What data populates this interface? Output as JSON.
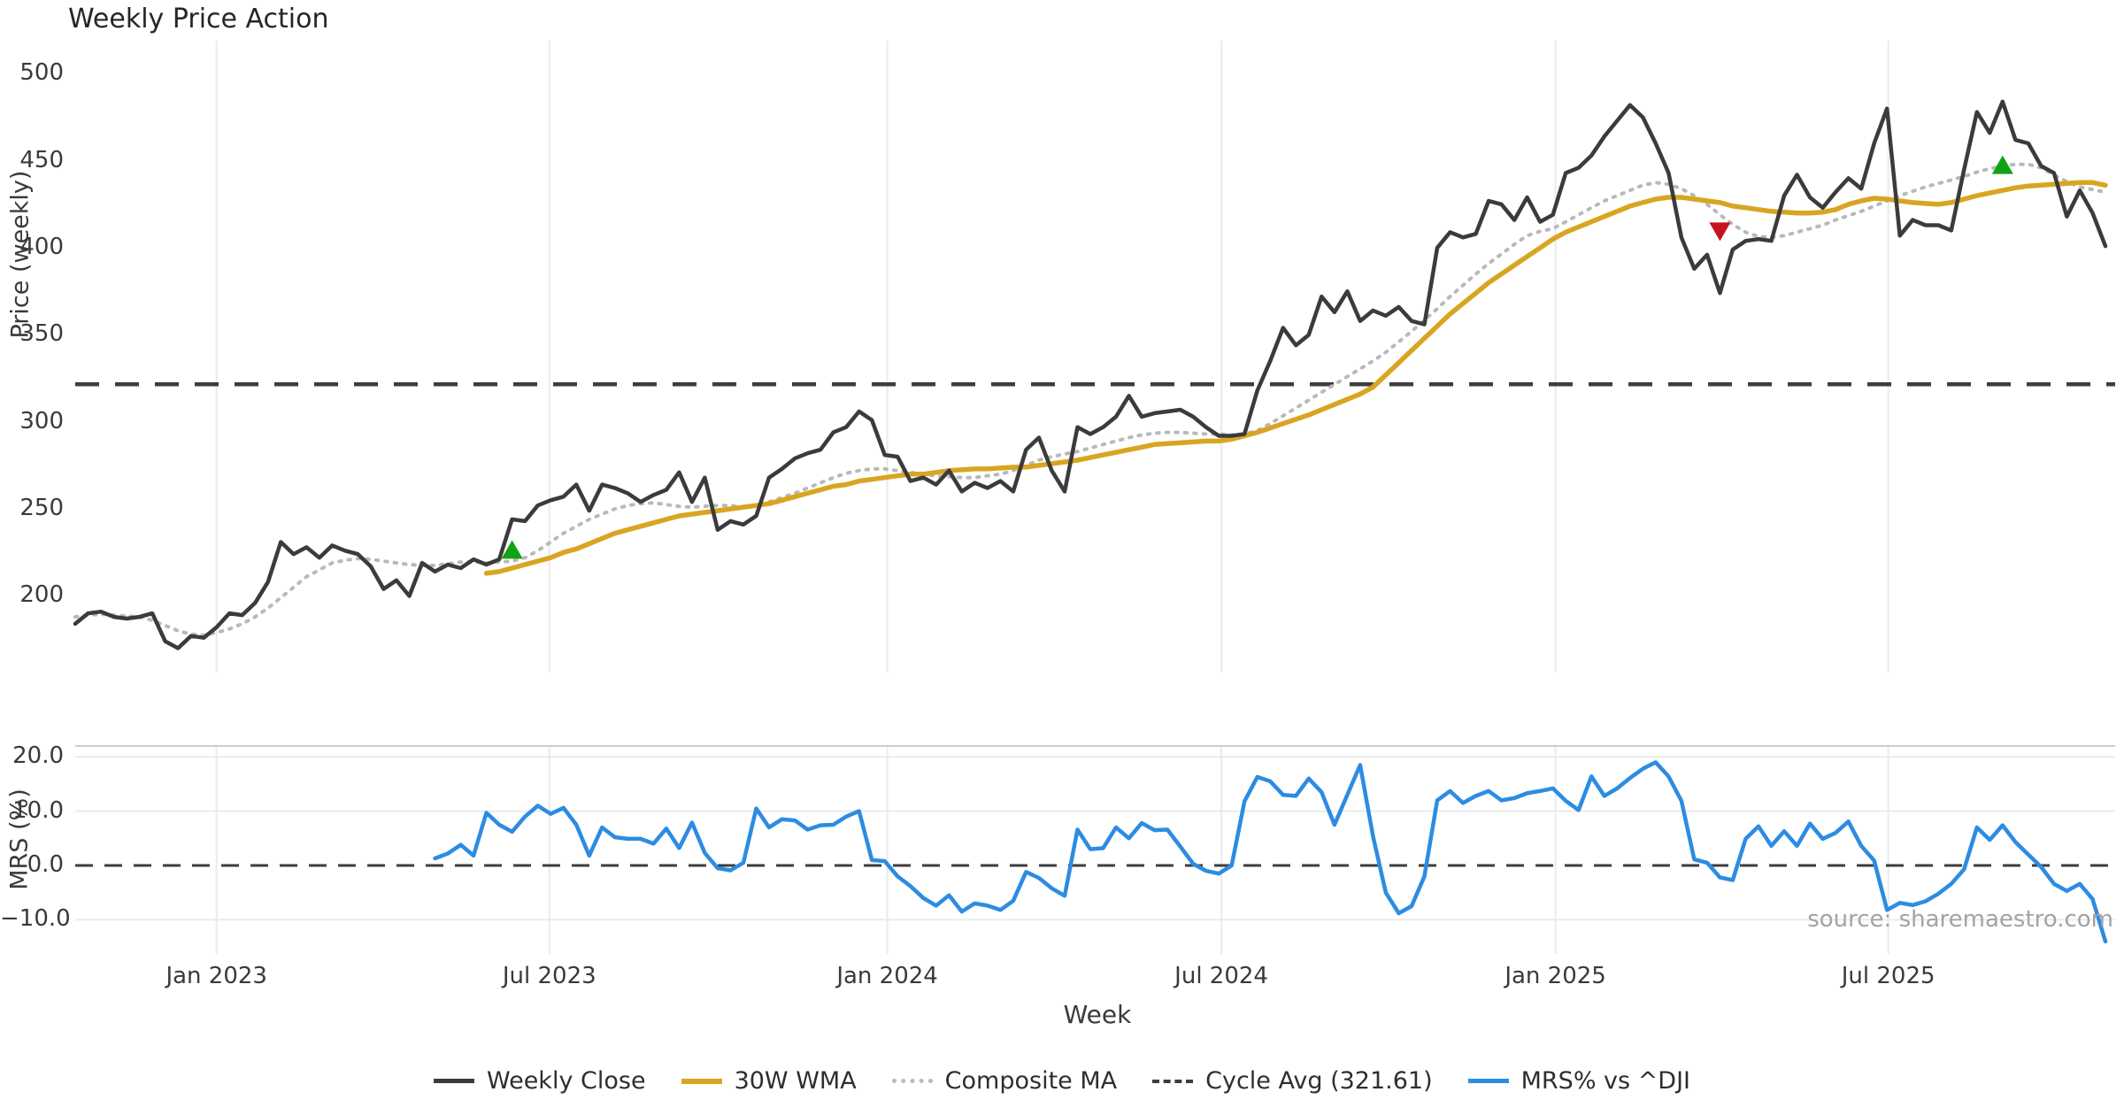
{
  "title": "Weekly Price Action",
  "xlabel": "Week",
  "source": "source: sharemaestro.com",
  "price_panel": {
    "ylabel": "Price (weekly)",
    "tick_values": [
      500,
      450,
      400,
      350,
      300,
      250,
      200
    ],
    "axis_min": 156,
    "axis_max": 519
  },
  "mrs_panel": {
    "ylabel": "MRS (%)",
    "tick_labels": [
      "20.0",
      "10.0",
      "0.0",
      "−10.0"
    ],
    "tick_values": [
      20,
      10,
      0,
      -10
    ],
    "grid_values": [
      20,
      10,
      -10
    ],
    "axis_min": -16.3,
    "axis_max": 22,
    "zero_line": 0
  },
  "x_axis": {
    "tick_labels": [
      "Jan 2023",
      "Jul 2023",
      "Jan 2024",
      "Jul 2024",
      "Jan 2025",
      "Jul 2025"
    ],
    "tick_weeks": [
      11,
      36.9,
      63.2,
      89.2,
      115.2,
      141.1
    ]
  },
  "legend": {
    "items": [
      {
        "label": "Weekly Close",
        "color": "#3b3b3b",
        "style": "solid"
      },
      {
        "label": "30W WMA",
        "color": "#d9a521",
        "style": "solid"
      },
      {
        "label": "Composite MA",
        "color": "#b9b9b9",
        "style": "dotted"
      },
      {
        "label": "Cycle Avg (321.61)",
        "color": "#3d3d3d",
        "style": "dashed"
      },
      {
        "label": "MRS% vs ^DJI",
        "color": "#2c8ce2",
        "style": "solid"
      }
    ]
  },
  "colors": {
    "close": "#3b3b3b",
    "wma": "#d9a521",
    "composite": "#b9b9b9",
    "cycle": "#3d3d3d",
    "mrs": "#2c8ce2",
    "marker_up": "#12a312",
    "marker_down": "#c6121c",
    "grid": "#ebebeb",
    "spine": "#cccccc"
  },
  "chart_data": {
    "type": "line",
    "x_unit": "weekly, Oct 2022 - Nov 2025",
    "weeks": 159,
    "cycle_avg": 321.61,
    "markers": [
      {
        "week": 34,
        "price": 226,
        "dir": "up"
      },
      {
        "week": 128,
        "price": 410,
        "dir": "down"
      },
      {
        "week": 150,
        "price": 447,
        "dir": "up"
      }
    ],
    "series": [
      {
        "name": "Weekly Close",
        "panel": "price",
        "color_key": "close",
        "style": "solid",
        "width": 4.5,
        "start_week": 0,
        "values": [
          184,
          190,
          191,
          188,
          187,
          188,
          190,
          174,
          170,
          177,
          176,
          182,
          190,
          189,
          196,
          208,
          231,
          224,
          228,
          222,
          229,
          226,
          224,
          217,
          204,
          209,
          200,
          219,
          214,
          218,
          216,
          221,
          218,
          221,
          244,
          243,
          252,
          255,
          257,
          264,
          249,
          264,
          262,
          259,
          254,
          258,
          261,
          271,
          254,
          268,
          238,
          243,
          241,
          246,
          268,
          273,
          279,
          282,
          284,
          294,
          297,
          306,
          301,
          281,
          280,
          266,
          268,
          264,
          272,
          260,
          265,
          262,
          266,
          260,
          284,
          291,
          272,
          260,
          297,
          293,
          297,
          303,
          315,
          303,
          305,
          306,
          307,
          303,
          297,
          292,
          292,
          293,
          318,
          335,
          354,
          344,
          350,
          372,
          363,
          375,
          358,
          364,
          361,
          366,
          358,
          356,
          400,
          409,
          406,
          408,
          427,
          425,
          416,
          429,
          415,
          419,
          443,
          446,
          453,
          464,
          473,
          482,
          475,
          460,
          443,
          406,
          388,
          396,
          374,
          399,
          404,
          405,
          404,
          430,
          442,
          429,
          423,
          432,
          440,
          434,
          460,
          480,
          407,
          416,
          413,
          413,
          410,
          445,
          478,
          466,
          484,
          462,
          460,
          447,
          443,
          418,
          433,
          420,
          401
        ]
      },
      {
        "name": "30W WMA",
        "panel": "price",
        "color_key": "wma",
        "style": "solid",
        "width": 5.5,
        "start_week": 32,
        "values": [
          213,
          214,
          216,
          218,
          220,
          222,
          225,
          227,
          230,
          233,
          236,
          238,
          240,
          242,
          244,
          246,
          247,
          248,
          249,
          250,
          251,
          252,
          253,
          255,
          257,
          259,
          261,
          263,
          264,
          266,
          267,
          268,
          269,
          270,
          270,
          271,
          272,
          272.5,
          273,
          273,
          273.5,
          274,
          274,
          275,
          276,
          277,
          278,
          279.5,
          281,
          282.5,
          284,
          285.5,
          287,
          287.5,
          288,
          288.5,
          289,
          289,
          290,
          292,
          294,
          296.5,
          299,
          301.5,
          304,
          307,
          310,
          313,
          316,
          320,
          327,
          334,
          341,
          348,
          355,
          362,
          368,
          374,
          380,
          385,
          390,
          395,
          400,
          405,
          409,
          412,
          415,
          418,
          421,
          424,
          426,
          428,
          429,
          429,
          428,
          427,
          426,
          424,
          423,
          422,
          421,
          420.5,
          420,
          420,
          420.5,
          422,
          425,
          427,
          428.5,
          428,
          427,
          426,
          425.5,
          425,
          426,
          428,
          430,
          431.5,
          433,
          434.5,
          435.5,
          436,
          436.5,
          437,
          437.5,
          437.5,
          436
        ]
      },
      {
        "name": "Composite MA",
        "panel": "price",
        "color_key": "composite",
        "style": "dotted",
        "width": 4,
        "start_week": 0,
        "values": [
          188,
          189,
          189.5,
          189,
          188.5,
          188,
          186,
          183,
          180,
          178,
          177.5,
          179,
          181,
          184,
          188,
          193,
          199,
          205,
          211,
          215,
          219,
          220.5,
          221.5,
          221,
          220,
          219,
          218,
          217.5,
          217.5,
          218.5,
          219.5,
          219.5,
          219,
          219.5,
          220,
          222,
          226,
          231,
          236,
          240,
          244,
          247,
          250,
          252,
          253,
          253.5,
          252.5,
          251.5,
          251,
          251.5,
          252,
          252,
          251,
          252,
          254,
          256.5,
          259,
          262,
          265,
          268,
          270.5,
          272,
          273,
          273,
          272,
          271,
          270,
          269,
          268.5,
          268,
          268,
          269,
          270,
          272,
          275,
          278,
          280,
          281.5,
          283,
          285,
          287,
          289,
          291,
          292.5,
          293.5,
          294,
          294,
          293.5,
          293,
          293,
          292.5,
          293,
          295,
          299,
          303.5,
          308,
          312.5,
          317,
          321.5,
          326,
          330.5,
          335,
          340,
          346,
          352,
          358.5,
          365,
          372,
          378.5,
          385,
          391,
          396.5,
          402,
          407,
          409.5,
          411,
          415,
          419,
          423,
          427,
          430,
          433,
          436,
          437.5,
          436.5,
          434,
          430,
          425,
          419,
          413.5,
          409,
          406.5,
          406,
          407,
          409,
          411,
          413,
          416,
          418.5,
          421,
          424,
          427,
          430,
          432.5,
          435,
          437,
          439,
          441,
          443.5,
          445.5,
          447,
          448,
          448,
          446,
          442,
          438,
          435,
          433.5,
          432
        ]
      },
      {
        "name": "MRS% vs ^DJI",
        "panel": "mrs",
        "color_key": "mrs",
        "style": "solid",
        "width": 4.5,
        "start_week": 28,
        "values": [
          1.3,
          2.2,
          3.8,
          1.8,
          9.7,
          7.5,
          6.2,
          9.0,
          11.0,
          9.5,
          10.6,
          7.5,
          1.8,
          7.0,
          5.2,
          4.9,
          4.9,
          4.0,
          6.8,
          3.2,
          7.9,
          2.3,
          -0.5,
          -0.9,
          0.5,
          10.5,
          7.0,
          8.5,
          8.3,
          6.6,
          7.4,
          7.5,
          9.0,
          10.0,
          1.0,
          0.8,
          -2.0,
          -3.8,
          -6.0,
          -7.4,
          -5.5,
          -8.5,
          -7.0,
          -7.4,
          -8.2,
          -6.5,
          -1.2,
          -2.3,
          -4.2,
          -5.6,
          6.6,
          3.0,
          3.2,
          7.0,
          5.0,
          7.8,
          6.5,
          6.6,
          3.5,
          0.3,
          -1.0,
          -1.5,
          0.0,
          11.8,
          16.3,
          15.5,
          13.0,
          12.8,
          16.0,
          13.5,
          7.5,
          13.0,
          18.5,
          5.4,
          -5.0,
          -8.8,
          -7.5,
          -2.0,
          12.0,
          13.7,
          11.5,
          12.8,
          13.7,
          12.0,
          12.4,
          13.3,
          13.7,
          14.2,
          11.9,
          10.2,
          16.4,
          12.8,
          14.2,
          16.1,
          17.8,
          19.0,
          16.4,
          11.9,
          1.1,
          0.5,
          -2.2,
          -2.7,
          4.9,
          7.2,
          3.6,
          6.3,
          3.6,
          7.7,
          4.9,
          6.0,
          8.1,
          3.6,
          0.9,
          -8.2,
          -6.9,
          -7.3,
          -6.6,
          -5.2,
          -3.4,
          -0.7,
          7.0,
          4.7,
          7.4,
          4.3,
          2.0,
          -0.3,
          -3.4,
          -4.7,
          -3.4,
          -6.2,
          -14.0
        ]
      }
    ]
  }
}
